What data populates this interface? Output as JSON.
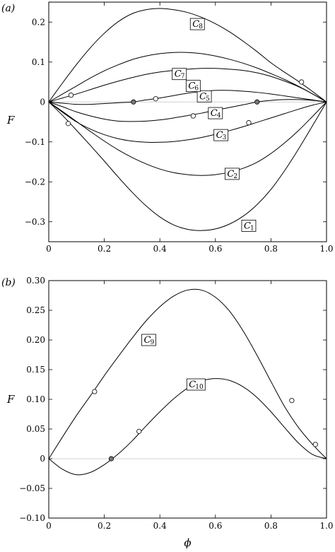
{
  "chart_data": [
    {
      "panel_label": "(a)",
      "type": "line",
      "ylabel": "F",
      "xlabel": "",
      "xlim": [
        0,
        1
      ],
      "ylim": [
        -0.35,
        0.25
      ],
      "xticks": [
        "0",
        "0.2",
        "0.4",
        "0.6",
        "0.8",
        "1.0"
      ],
      "xtick_values": [
        0,
        0.2,
        0.4,
        0.6,
        0.8,
        1.0
      ],
      "yticks": [
        "−0.3",
        "−0.2",
        "−0.1",
        "0",
        "0.1",
        "0.2"
      ],
      "ytick_values": [
        -0.3,
        -0.2,
        -0.1,
        0,
        0.1,
        0.2
      ],
      "grid": false,
      "zero_line": true,
      "series": [
        {
          "name": "C1",
          "sub": "1",
          "x": [
            0,
            0.05,
            0.1,
            0.15,
            0.2,
            0.25,
            0.3,
            0.35,
            0.4,
            0.45,
            0.5,
            0.55,
            0.6,
            0.65,
            0.7,
            0.75,
            0.8,
            0.85,
            0.9,
            0.95,
            1.0
          ],
          "y": [
            0,
            -0.034,
            -0.071,
            -0.109,
            -0.148,
            -0.188,
            -0.226,
            -0.26,
            -0.288,
            -0.308,
            -0.319,
            -0.322,
            -0.318,
            -0.306,
            -0.286,
            -0.257,
            -0.219,
            -0.171,
            -0.117,
            -0.059,
            0
          ],
          "label_at": [
            0.72,
            -0.31
          ]
        },
        {
          "name": "C2",
          "sub": "2",
          "x": [
            0,
            0.05,
            0.1,
            0.15,
            0.2,
            0.25,
            0.3,
            0.35,
            0.4,
            0.45,
            0.5,
            0.55,
            0.6,
            0.65,
            0.7,
            0.75,
            0.8,
            0.85,
            0.9,
            0.95,
            1.0
          ],
          "y": [
            0,
            -0.024,
            -0.049,
            -0.074,
            -0.098,
            -0.12,
            -0.139,
            -0.155,
            -0.168,
            -0.177,
            -0.182,
            -0.184,
            -0.182,
            -0.176,
            -0.166,
            -0.151,
            -0.129,
            -0.102,
            -0.071,
            -0.036,
            0
          ],
          "label_at": [
            0.66,
            -0.18
          ]
        },
        {
          "name": "C3",
          "sub": "3",
          "x": [
            0,
            0.05,
            0.1,
            0.15,
            0.2,
            0.25,
            0.3,
            0.35,
            0.4,
            0.45,
            0.5,
            0.55,
            0.6,
            0.65,
            0.7,
            0.75,
            0.8,
            0.85,
            0.9,
            0.95,
            1.0
          ],
          "y": [
            0,
            -0.026,
            -0.05,
            -0.068,
            -0.082,
            -0.092,
            -0.098,
            -0.101,
            -0.101,
            -0.099,
            -0.095,
            -0.089,
            -0.081,
            -0.072,
            -0.062,
            -0.051,
            -0.04,
            -0.029,
            -0.018,
            -0.008,
            0
          ],
          "label_at": [
            0.62,
            -0.083
          ]
        },
        {
          "name": "C4",
          "sub": "4",
          "x": [
            0,
            0.05,
            0.1,
            0.15,
            0.2,
            0.25,
            0.3,
            0.35,
            0.4,
            0.45,
            0.5,
            0.55,
            0.6,
            0.65,
            0.7,
            0.75,
            0.8,
            0.85,
            0.9,
            0.95,
            1.0
          ],
          "y": [
            0,
            -0.012,
            -0.025,
            -0.035,
            -0.043,
            -0.048,
            -0.049,
            -0.048,
            -0.045,
            -0.04,
            -0.034,
            -0.028,
            -0.021,
            -0.014,
            -0.007,
            0,
            0.004,
            0.006,
            0.006,
            0.004,
            0
          ],
          "label_at": [
            0.6,
            -0.028
          ]
        },
        {
          "name": "C5",
          "sub": "5",
          "x": [
            0,
            0.05,
            0.1,
            0.15,
            0.2,
            0.25,
            0.3,
            0.35,
            0.4,
            0.45,
            0.5,
            0.55,
            0.6,
            0.65,
            0.7,
            0.75,
            0.8,
            0.85,
            0.9,
            0.95,
            1.0
          ],
          "y": [
            0,
            -0.003,
            -0.006,
            -0.006,
            -0.004,
            -0.002,
            0,
            0.005,
            0.01,
            0.016,
            0.022,
            0.026,
            0.029,
            0.029,
            0.027,
            0.024,
            0.02,
            0.015,
            0.01,
            0.005,
            0
          ],
          "label_at": [
            0.56,
            0.014
          ]
        },
        {
          "name": "C6",
          "sub": "6",
          "x": [
            0,
            0.05,
            0.1,
            0.15,
            0.2,
            0.25,
            0.3,
            0.35,
            0.4,
            0.45,
            0.5,
            0.55,
            0.6,
            0.65,
            0.7,
            0.75,
            0.8,
            0.85,
            0.9,
            0.95,
            1.0
          ],
          "y": [
            0,
            0.01,
            0.02,
            0.031,
            0.042,
            0.052,
            0.061,
            0.069,
            0.075,
            0.079,
            0.082,
            0.084,
            0.084,
            0.082,
            0.079,
            0.073,
            0.064,
            0.052,
            0.038,
            0.02,
            0
          ],
          "label_at": [
            0.52,
            0.04
          ]
        },
        {
          "name": "C7",
          "sub": "7",
          "x": [
            0,
            0.05,
            0.1,
            0.15,
            0.2,
            0.25,
            0.3,
            0.35,
            0.4,
            0.45,
            0.5,
            0.55,
            0.6,
            0.65,
            0.7,
            0.75,
            0.8,
            0.85,
            0.9,
            0.95,
            1.0
          ],
          "y": [
            0,
            0.02,
            0.04,
            0.06,
            0.078,
            0.093,
            0.106,
            0.115,
            0.121,
            0.124,
            0.124,
            0.121,
            0.115,
            0.107,
            0.097,
            0.085,
            0.071,
            0.056,
            0.039,
            0.02,
            0
          ],
          "label_at": [
            0.47,
            0.07
          ]
        },
        {
          "name": "C8",
          "sub": "8",
          "x": [
            0,
            0.05,
            0.1,
            0.15,
            0.2,
            0.25,
            0.3,
            0.35,
            0.4,
            0.45,
            0.5,
            0.55,
            0.6,
            0.65,
            0.7,
            0.75,
            0.8,
            0.85,
            0.9,
            0.95,
            1.0
          ],
          "y": [
            0,
            0.048,
            0.094,
            0.136,
            0.172,
            0.201,
            0.221,
            0.231,
            0.234,
            0.231,
            0.224,
            0.212,
            0.196,
            0.176,
            0.152,
            0.126,
            0.098,
            0.074,
            0.051,
            0.026,
            0
          ],
          "label_at": [
            0.535,
            0.195
          ]
        }
      ],
      "markers": [
        {
          "x": 0.08,
          "y": 0.017,
          "fill": "open"
        },
        {
          "x": 0.07,
          "y": -0.054,
          "fill": "open"
        },
        {
          "x": 0.305,
          "y": 0.0,
          "fill": "filled"
        },
        {
          "x": 0.385,
          "y": 0.008,
          "fill": "open"
        },
        {
          "x": 0.52,
          "y": -0.035,
          "fill": "open"
        },
        {
          "x": 0.75,
          "y": 0.0,
          "fill": "filled"
        },
        {
          "x": 0.72,
          "y": -0.052,
          "fill": "open"
        },
        {
          "x": 0.91,
          "y": 0.05,
          "fill": "open"
        }
      ]
    },
    {
      "panel_label": "(b)",
      "type": "line",
      "ylabel": "F",
      "xlabel": "ϕ",
      "xlim": [
        0,
        1
      ],
      "ylim": [
        -0.1,
        0.3
      ],
      "xticks": [
        "0",
        "0.2",
        "0.4",
        "0.6",
        "0.8",
        "1.0"
      ],
      "xtick_values": [
        0,
        0.2,
        0.4,
        0.6,
        0.8,
        1.0
      ],
      "yticks": [
        "−0.10",
        "−0.05",
        "0",
        "0.05",
        "0.10",
        "0.15",
        "0.20",
        "0.25",
        "0.30"
      ],
      "ytick_values": [
        -0.1,
        -0.05,
        0,
        0.05,
        0.1,
        0.15,
        0.2,
        0.25,
        0.3
      ],
      "grid": false,
      "zero_line": true,
      "series": [
        {
          "name": "C9",
          "sub": "9",
          "x": [
            0,
            0.05,
            0.1,
            0.15,
            0.2,
            0.25,
            0.3,
            0.35,
            0.4,
            0.45,
            0.5,
            0.55,
            0.6,
            0.65,
            0.7,
            0.75,
            0.8,
            0.85,
            0.9,
            0.95,
            1.0
          ],
          "y": [
            0,
            0.037,
            0.073,
            0.106,
            0.14,
            0.172,
            0.203,
            0.232,
            0.256,
            0.274,
            0.284,
            0.284,
            0.272,
            0.249,
            0.215,
            0.174,
            0.13,
            0.087,
            0.052,
            0.024,
            0
          ],
          "label_at": [
            0.36,
            0.2
          ]
        },
        {
          "name": "C10",
          "sub": "10",
          "x": [
            0,
            0.05,
            0.1,
            0.15,
            0.2,
            0.25,
            0.3,
            0.35,
            0.4,
            0.45,
            0.5,
            0.55,
            0.6,
            0.65,
            0.7,
            0.75,
            0.8,
            0.85,
            0.9,
            0.95,
            1.0
          ],
          "y": [
            0,
            -0.018,
            -0.027,
            -0.023,
            -0.01,
            0.008,
            0.03,
            0.055,
            0.079,
            0.101,
            0.119,
            0.131,
            0.135,
            0.132,
            0.121,
            0.103,
            0.079,
            0.052,
            0.026,
            0.007,
            0
          ],
          "label_at": [
            0.53,
            0.125
          ]
        }
      ],
      "markers": [
        {
          "x": 0.165,
          "y": 0.113,
          "fill": "open"
        },
        {
          "x": 0.225,
          "y": 0.0,
          "fill": "filled"
        },
        {
          "x": 0.325,
          "y": 0.046,
          "fill": "open"
        },
        {
          "x": 0.875,
          "y": 0.098,
          "fill": "open"
        },
        {
          "x": 0.96,
          "y": 0.024,
          "fill": "open"
        }
      ]
    }
  ]
}
